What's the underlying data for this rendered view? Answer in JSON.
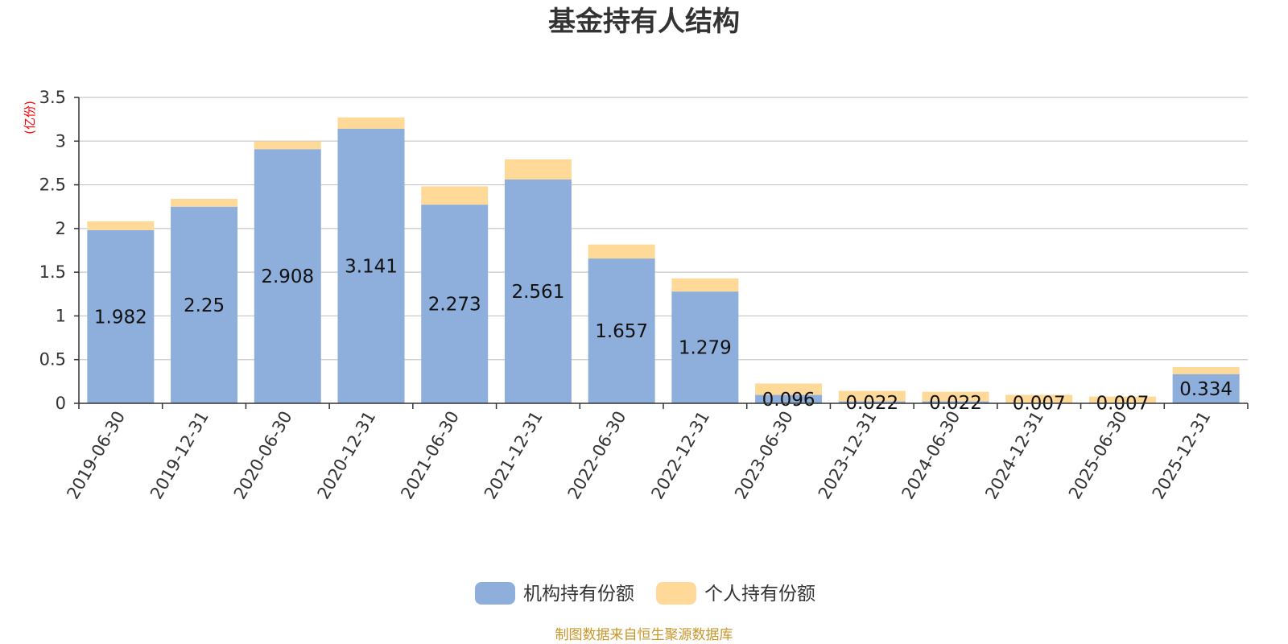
{
  "chart_data": {
    "type": "bar",
    "stacked": true,
    "title": "基金持有人结构",
    "unit_label": "(亿份)",
    "categories": [
      "2019-06-30",
      "2019-12-31",
      "2020-06-30",
      "2020-12-31",
      "2021-06-30",
      "2021-12-31",
      "2022-06-30",
      "2022-12-31",
      "2023-06-30",
      "2023-12-31",
      "2024-06-30",
      "2024-12-31",
      "2025-06-30",
      "2025-12-31"
    ],
    "series": [
      {
        "name": "机构持有份额",
        "color": "#8eaedb",
        "values": [
          1.982,
          2.25,
          2.908,
          3.141,
          2.273,
          2.561,
          1.657,
          1.279,
          0.096,
          0.022,
          0.022,
          0.007,
          0.007,
          0.334
        ],
        "labels": [
          "1.982",
          "2.25",
          "2.908",
          "3.141",
          "2.273",
          "2.561",
          "1.657",
          "1.279",
          "0.096",
          "0.022",
          "0.022",
          "0.007",
          "0.007",
          "0.334"
        ]
      },
      {
        "name": "个人持有份额",
        "color": "#fed998",
        "values": [
          0.1,
          0.09,
          0.09,
          0.13,
          0.21,
          0.23,
          0.16,
          0.15,
          0.13,
          0.12,
          0.11,
          0.09,
          0.07,
          0.08
        ]
      }
    ],
    "ylim": [
      0,
      3.5
    ],
    "yticks": [
      "0",
      "0.5",
      "1",
      "1.5",
      "2",
      "2.5",
      "3",
      "3.5"
    ],
    "grid": true,
    "legend_position": "bottom-center"
  },
  "footer": {
    "source": "制图数据来自恒生聚源数据库"
  }
}
